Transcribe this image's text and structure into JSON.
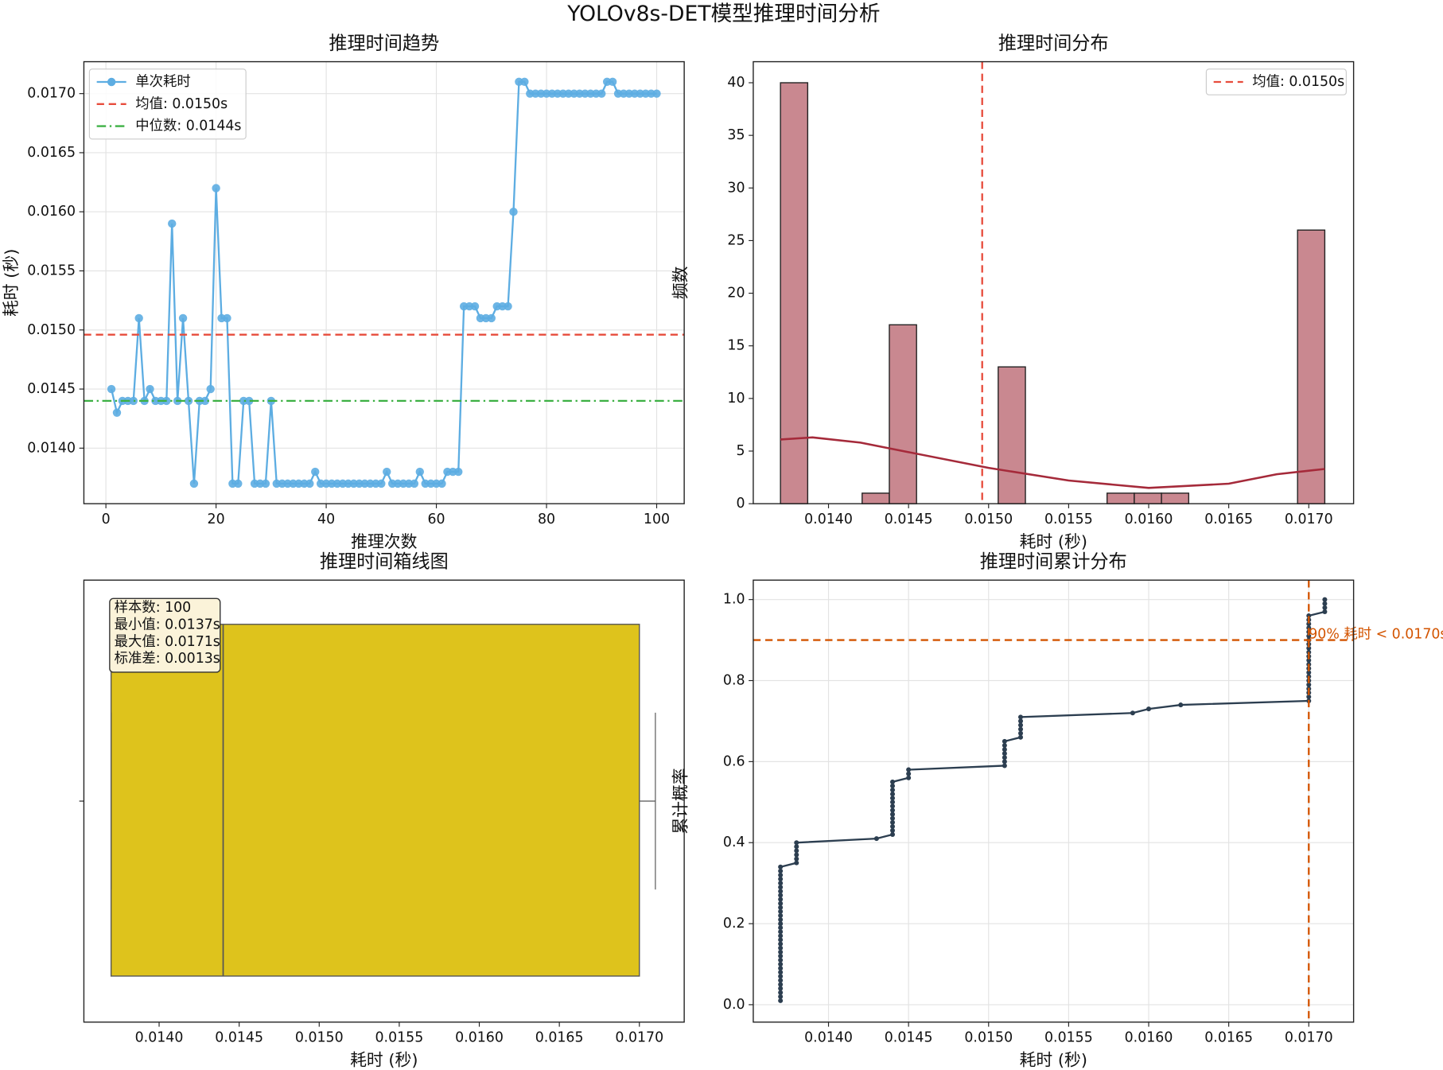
{
  "title": "YOLOv8s-DET模型推理时间分析",
  "chart_data": [
    {
      "type": "line",
      "title": "推理时间趋势",
      "xlabel": "推理次数",
      "ylabel": "耗时 (秒)",
      "x": [
        1,
        2,
        3,
        4,
        5,
        6,
        7,
        8,
        9,
        10,
        11,
        12,
        13,
        14,
        15,
        16,
        17,
        18,
        19,
        20,
        21,
        22,
        23,
        24,
        25,
        26,
        27,
        28,
        29,
        30,
        31,
        32,
        33,
        34,
        35,
        36,
        37,
        38,
        39,
        40,
        41,
        42,
        43,
        44,
        45,
        46,
        47,
        48,
        49,
        50,
        51,
        52,
        53,
        54,
        55,
        56,
        57,
        58,
        59,
        60,
        61,
        62,
        63,
        64,
        65,
        66,
        67,
        68,
        69,
        70,
        71,
        72,
        73,
        74,
        75,
        76,
        77,
        78,
        79,
        80,
        81,
        82,
        83,
        84,
        85,
        86,
        87,
        88,
        89,
        90,
        91,
        92,
        93,
        94,
        95,
        96,
        97,
        98,
        99,
        100
      ],
      "series": [
        {
          "name": "单次耗时",
          "color": "#5dade2",
          "values": [
            0.0145,
            0.0143,
            0.0144,
            0.0144,
            0.0144,
            0.0151,
            0.0144,
            0.0145,
            0.0144,
            0.0144,
            0.0144,
            0.0159,
            0.0144,
            0.0151,
            0.0144,
            0.0137,
            0.0144,
            0.0144,
            0.0145,
            0.0162,
            0.0151,
            0.0151,
            0.0137,
            0.0137,
            0.0144,
            0.0144,
            0.0137,
            0.0137,
            0.0137,
            0.0144,
            0.0137,
            0.0137,
            0.0137,
            0.0137,
            0.0137,
            0.0137,
            0.0137,
            0.0138,
            0.0137,
            0.0137,
            0.0137,
            0.0137,
            0.0137,
            0.0137,
            0.0137,
            0.0137,
            0.0137,
            0.0137,
            0.0137,
            0.0137,
            0.0138,
            0.0137,
            0.0137,
            0.0137,
            0.0137,
            0.0137,
            0.0138,
            0.0137,
            0.0137,
            0.0137,
            0.0137,
            0.0138,
            0.0138,
            0.0138,
            0.0152,
            0.0152,
            0.0152,
            0.0151,
            0.0151,
            0.0151,
            0.0152,
            0.0152,
            0.0152,
            0.016,
            0.0171,
            0.0171,
            0.017,
            0.017,
            0.017,
            0.017,
            0.017,
            0.017,
            0.017,
            0.017,
            0.017,
            0.017,
            0.017,
            0.017,
            0.017,
            0.017,
            0.0171,
            0.0171,
            0.017,
            0.017,
            0.017,
            0.017,
            0.017,
            0.017,
            0.017,
            0.017
          ]
        }
      ],
      "hlines": [
        {
          "name": "均值: 0.0150s",
          "value": 0.01496,
          "color": "#e74c3c",
          "style": "dashed"
        },
        {
          "name": "中位数: 0.0144s",
          "value": 0.0144,
          "color": "#3cb043",
          "style": "dashdot"
        }
      ],
      "xlim": [
        -4,
        105
      ],
      "xticks": [
        0,
        20,
        40,
        60,
        80,
        100
      ],
      "ylim": [
        0.01353,
        0.01727
      ],
      "yticks": [
        {
          "value": 0.014,
          "label": "0.0140"
        },
        {
          "value": 0.0145,
          "label": "0.0145"
        },
        {
          "value": 0.015,
          "label": "0.0150"
        },
        {
          "value": 0.0155,
          "label": "0.0155"
        },
        {
          "value": 0.016,
          "label": "0.0160"
        },
        {
          "value": 0.0165,
          "label": "0.0165"
        },
        {
          "value": 0.017,
          "label": "0.0170"
        }
      ],
      "grid": true,
      "legend": "upper left"
    },
    {
      "type": "histogram",
      "title": "推理时间分布",
      "xlabel": "耗时 (秒)",
      "ylabel": "频数",
      "bins": [
        0.0137,
        0.01387,
        0.01404,
        0.01421,
        0.01438,
        0.01455,
        0.01472,
        0.01489,
        0.01506,
        0.01523,
        0.0154,
        0.01557,
        0.01574,
        0.01591,
        0.01608,
        0.01625,
        0.01642,
        0.01659,
        0.01676,
        0.01693,
        0.0171
      ],
      "counts": [
        40,
        0,
        0,
        1,
        17,
        0,
        0,
        0,
        13,
        0,
        0,
        0,
        1,
        1,
        1,
        0,
        0,
        0,
        0,
        26
      ],
      "color": "#c98890",
      "edgecolor": "#222222",
      "kde": {
        "color": "#a52a3a",
        "x": [
          0.0137,
          0.0139,
          0.0142,
          0.0145,
          0.015,
          0.0155,
          0.016,
          0.0165,
          0.0168,
          0.0171
        ],
        "values": [
          6.1,
          6.3,
          5.8,
          4.9,
          3.4,
          2.2,
          1.5,
          1.9,
          2.8,
          3.3
        ]
      },
      "vlines": [
        {
          "name": "均值: 0.0150s",
          "value": 0.01496,
          "color": "#e74c3c"
        }
      ],
      "xlim": [
        0.01353,
        0.01728
      ],
      "xticks": [
        {
          "value": 0.014,
          "label": "0.0140"
        },
        {
          "value": 0.0145,
          "label": "0.0145"
        },
        {
          "value": 0.015,
          "label": "0.0150"
        },
        {
          "value": 0.0155,
          "label": "0.0155"
        },
        {
          "value": 0.016,
          "label": "0.0160"
        },
        {
          "value": 0.0165,
          "label": "0.0165"
        },
        {
          "value": 0.017,
          "label": "0.0170"
        }
      ],
      "ylim": [
        0,
        42
      ],
      "yticks": [
        0,
        5,
        10,
        15,
        20,
        25,
        30,
        35,
        40
      ],
      "grid": false,
      "legend": "upper right"
    },
    {
      "type": "box",
      "title": "推理时间箱线图",
      "xlabel": "耗时 (秒)",
      "whisker_low": 0.0137,
      "q1": 0.0137,
      "median": 0.0144,
      "q3": 0.017,
      "whisker_high": 0.0171,
      "color": "#dec31c",
      "annotation": [
        "样本数: 100",
        "最小值: 0.0137s",
        "最大值: 0.0171s",
        "标准差: 0.0013s"
      ],
      "xlim": [
        0.01353,
        0.01728
      ],
      "xticks": [
        {
          "value": 0.014,
          "label": "0.0140"
        },
        {
          "value": 0.0145,
          "label": "0.0145"
        },
        {
          "value": 0.015,
          "label": "0.0150"
        },
        {
          "value": 0.0155,
          "label": "0.0155"
        },
        {
          "value": 0.016,
          "label": "0.0160"
        },
        {
          "value": 0.0165,
          "label": "0.0165"
        },
        {
          "value": 0.017,
          "label": "0.0170"
        }
      ],
      "grid": false
    },
    {
      "type": "ecdf",
      "title": "推理时间累计分布",
      "xlabel": "耗时 (秒)",
      "ylabel": "累计概率",
      "color": "#2c3e50",
      "x": [
        0.0137,
        0.0137,
        0.0137,
        0.0137,
        0.0137,
        0.0137,
        0.0137,
        0.0137,
        0.0137,
        0.0137,
        0.0137,
        0.0137,
        0.0137,
        0.0137,
        0.0137,
        0.0137,
        0.0137,
        0.0137,
        0.0137,
        0.0137,
        0.0137,
        0.0137,
        0.0137,
        0.0137,
        0.0137,
        0.0137,
        0.0137,
        0.0137,
        0.0137,
        0.0137,
        0.0137,
        0.0137,
        0.0137,
        0.0137,
        0.0138,
        0.0138,
        0.0138,
        0.0138,
        0.0138,
        0.0138,
        0.0143,
        0.0144,
        0.0144,
        0.0144,
        0.0144,
        0.0144,
        0.0144,
        0.0144,
        0.0144,
        0.0144,
        0.0144,
        0.0144,
        0.0144,
        0.0144,
        0.0144,
        0.0145,
        0.0145,
        0.0145,
        0.0151,
        0.0151,
        0.0151,
        0.0151,
        0.0151,
        0.0151,
        0.0151,
        0.0152,
        0.0152,
        0.0152,
        0.0152,
        0.0152,
        0.0152,
        0.0159,
        0.016,
        0.0162,
        0.017,
        0.017,
        0.017,
        0.017,
        0.017,
        0.017,
        0.017,
        0.017,
        0.017,
        0.017,
        0.017,
        0.017,
        0.017,
        0.017,
        0.017,
        0.017,
        0.017,
        0.017,
        0.017,
        0.017,
        0.017,
        0.017,
        0.0171,
        0.0171,
        0.0171,
        0.0171
      ],
      "values": [
        0.01,
        0.02,
        0.03,
        0.04,
        0.05,
        0.06,
        0.07,
        0.08,
        0.09,
        0.1,
        0.11,
        0.12,
        0.13,
        0.14,
        0.15,
        0.16,
        0.17,
        0.18,
        0.19,
        0.2,
        0.21,
        0.22,
        0.23,
        0.24,
        0.25,
        0.26,
        0.27,
        0.28,
        0.29,
        0.3,
        0.31,
        0.32,
        0.33,
        0.34,
        0.35,
        0.36,
        0.37,
        0.38,
        0.39,
        0.4,
        0.41,
        0.42,
        0.43,
        0.44,
        0.45,
        0.46,
        0.47,
        0.48,
        0.49,
        0.5,
        0.51,
        0.52,
        0.53,
        0.54,
        0.55,
        0.56,
        0.57,
        0.58,
        0.59,
        0.6,
        0.61,
        0.62,
        0.63,
        0.64,
        0.65,
        0.66,
        0.67,
        0.68,
        0.69,
        0.7,
        0.71,
        0.72,
        0.73,
        0.74,
        0.75,
        0.76,
        0.77,
        0.78,
        0.79,
        0.8,
        0.81,
        0.82,
        0.83,
        0.84,
        0.85,
        0.86,
        0.87,
        0.88,
        0.89,
        0.9,
        0.91,
        0.92,
        0.93,
        0.94,
        0.95,
        0.96,
        0.97,
        0.98,
        0.99,
        1
      ],
      "vlines": [
        {
          "value": 0.017,
          "color": "#d35400"
        }
      ],
      "hlines": [
        {
          "value": 0.9,
          "color": "#d35400"
        }
      ],
      "annotation": "90% 耗时 < 0.0170s",
      "xlim": [
        0.01353,
        0.01728
      ],
      "xticks": [
        {
          "value": 0.014,
          "label": "0.0140"
        },
        {
          "value": 0.0145,
          "label": "0.0145"
        },
        {
          "value": 0.015,
          "label": "0.0150"
        },
        {
          "value": 0.0155,
          "label": "0.0155"
        },
        {
          "value": 0.016,
          "label": "0.0160"
        },
        {
          "value": 0.0165,
          "label": "0.0165"
        },
        {
          "value": 0.017,
          "label": "0.0170"
        }
      ],
      "ylim": [
        -0.043,
        1.048
      ],
      "yticks": [
        {
          "value": 0,
          "label": "0.0"
        },
        0.2,
        0.4,
        0.6,
        0.8,
        {
          "value": 1,
          "label": "1.0"
        }
      ],
      "grid": true
    }
  ]
}
